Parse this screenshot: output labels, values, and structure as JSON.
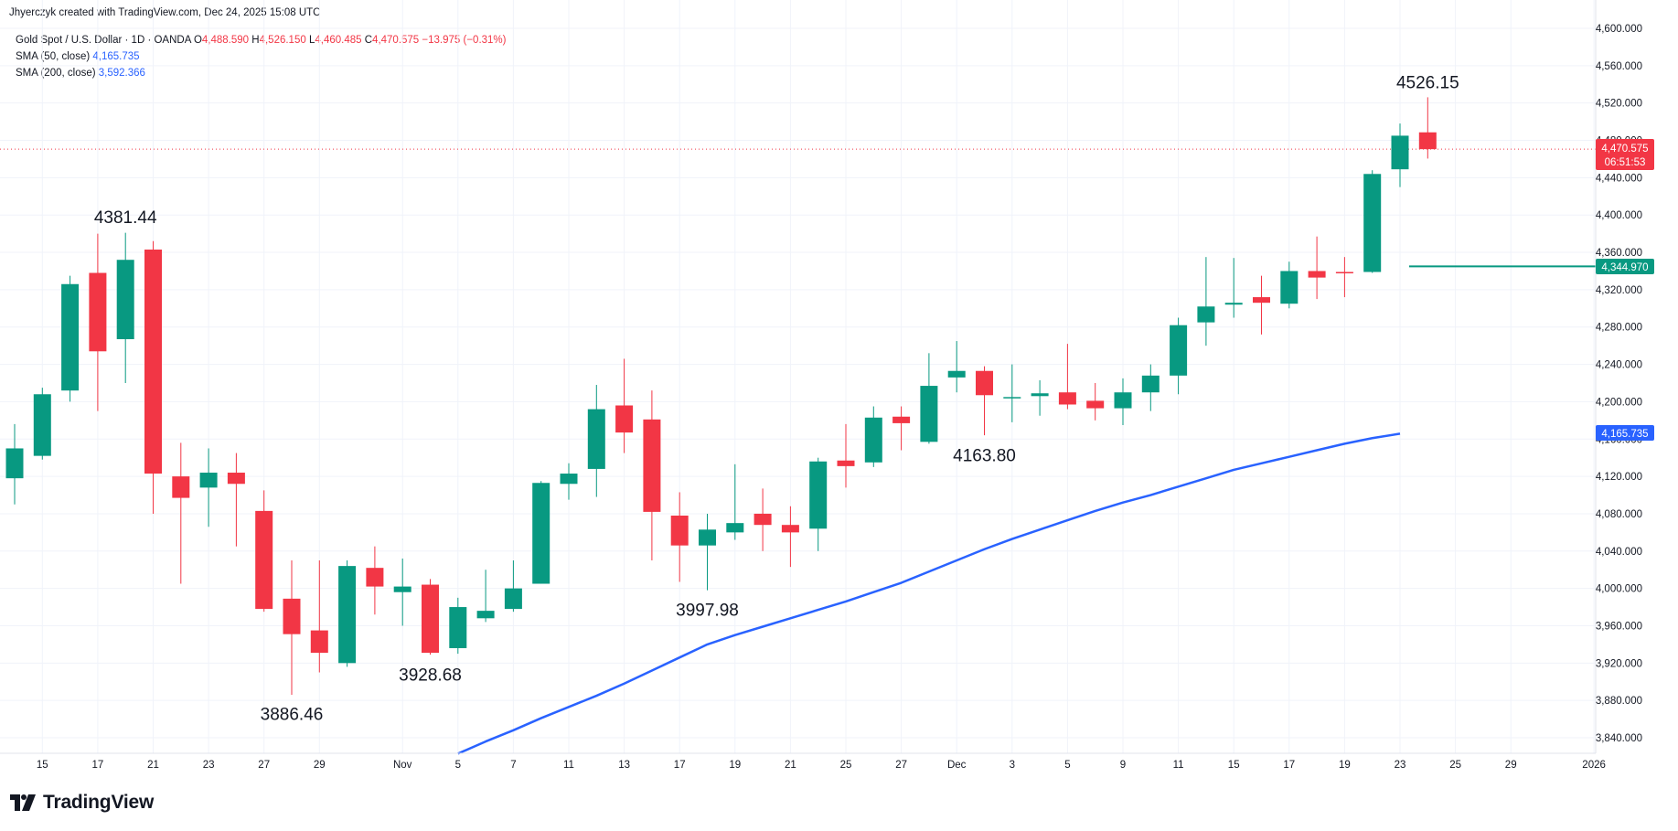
{
  "header": {
    "attribution": "Jhyerczyk created with TradingView.com, Dec 24, 2025 15:08 UTC"
  },
  "legend": {
    "symbol": "Gold Spot / U.S. Dollar · 1D · OANDA",
    "o_label": "O",
    "o_value": "4,488.590",
    "h_label": "H",
    "h_value": "4,526.150",
    "l_label": "L",
    "l_value": "4,460.485",
    "c_label": "C",
    "c_value": "4,470.575",
    "change": "−13.975 (−0.31%)",
    "sma50_label": "SMA (50, close)",
    "sma50_value": "4,165.735",
    "sma200_label": "SMA (200, close)",
    "sma200_value": "3,592.366"
  },
  "price_tags": {
    "last_price": "4,470.575",
    "countdown": "06:51:53",
    "hline_value": "4,344.970",
    "sma50_value": "4,165.735"
  },
  "brand": {
    "name": "TradingView"
  },
  "colors": {
    "up": "#089981",
    "down": "#f23645",
    "sma50": "#2962ff",
    "hline": "#089981",
    "grid": "#f0f3fa",
    "axis_text": "#131722"
  },
  "chart_data": {
    "type": "candlestick",
    "title": "Gold Spot / U.S. Dollar · 1D · OANDA",
    "ylim": [
      3820,
      4610
    ],
    "y_ticks": [
      3840,
      3880,
      3920,
      3960,
      4000,
      4040,
      4080,
      4120,
      4160,
      4200,
      4240,
      4280,
      4320,
      4360,
      4400,
      4440,
      4480,
      4520,
      4560,
      4600
    ],
    "y_tick_labels": [
      "3,840.000",
      "3,880.000",
      "3,920.000",
      "3,960.000",
      "4,000.000",
      "4,040.000",
      "4,080.000",
      "4,120.000",
      "4,160.000",
      "4,200.000",
      "4,240.000",
      "4,280.000",
      "4,320.000",
      "4,360.000",
      "4,400.000",
      "4,440.000",
      "4,480.000",
      "4,520.000",
      "4,560.000",
      "4,600.000"
    ],
    "x_tick_labels": [
      "15",
      "17",
      "21",
      "23",
      "27",
      "29",
      "Nov",
      "5",
      "7",
      "11",
      "13",
      "17",
      "19",
      "21",
      "25",
      "27",
      "Dec",
      "3",
      "5",
      "9",
      "11",
      "15",
      "17",
      "19",
      "23",
      "25",
      "29",
      "2026"
    ],
    "x_tick_slots": [
      1,
      3,
      5,
      7,
      9,
      11,
      14,
      16,
      18,
      20,
      22,
      24,
      26,
      28,
      30,
      32,
      34,
      36,
      38,
      40,
      42,
      44,
      46,
      48,
      50,
      52,
      54,
      57
    ],
    "candles": [
      {
        "o": 4118,
        "h": 4176,
        "l": 4090,
        "c": 4150
      },
      {
        "o": 4142,
        "h": 4215,
        "l": 4138,
        "c": 4208
      },
      {
        "o": 4212,
        "h": 4335,
        "l": 4200,
        "c": 4326
      },
      {
        "o": 4338,
        "h": 4380,
        "l": 4190,
        "c": 4254
      },
      {
        "o": 4267,
        "h": 4381,
        "l": 4220,
        "c": 4352
      },
      {
        "o": 4363,
        "h": 4372,
        "l": 4080,
        "c": 4123
      },
      {
        "o": 4120,
        "h": 4156,
        "l": 4005,
        "c": 4097
      },
      {
        "o": 4108,
        "h": 4150,
        "l": 4066,
        "c": 4124
      },
      {
        "o": 4124,
        "h": 4145,
        "l": 4045,
        "c": 4112
      },
      {
        "o": 4083,
        "h": 4105,
        "l": 3975,
        "c": 3978
      },
      {
        "o": 3989,
        "h": 4030,
        "l": 3886,
        "c": 3951
      },
      {
        "o": 3955,
        "h": 4030,
        "l": 3910,
        "c": 3931
      },
      {
        "o": 3920,
        "h": 4030,
        "l": 3916,
        "c": 4024
      },
      {
        "o": 4022,
        "h": 4045,
        "l": 3972,
        "c": 4002
      },
      {
        "o": 3996,
        "h": 4032,
        "l": 3960,
        "c": 4002
      },
      {
        "o": 4004,
        "h": 4010,
        "l": 3929,
        "c": 3931
      },
      {
        "o": 3936,
        "h": 3990,
        "l": 3930,
        "c": 3980
      },
      {
        "o": 3968,
        "h": 4020,
        "l": 3964,
        "c": 3976
      },
      {
        "o": 3978,
        "h": 4030,
        "l": 3975,
        "c": 4000
      },
      {
        "o": 4005,
        "h": 4115,
        "l": 4005,
        "c": 4113
      },
      {
        "o": 4112,
        "h": 4134,
        "l": 4095,
        "c": 4123
      },
      {
        "o": 4128,
        "h": 4218,
        "l": 4098,
        "c": 4192
      },
      {
        "o": 4196,
        "h": 4246,
        "l": 4145,
        "c": 4167
      },
      {
        "o": 4181,
        "h": 4212,
        "l": 4030,
        "c": 4082
      },
      {
        "o": 4078,
        "h": 4103,
        "l": 4007,
        "c": 4046
      },
      {
        "o": 4046,
        "h": 4080,
        "l": 3998,
        "c": 4063
      },
      {
        "o": 4060,
        "h": 4133,
        "l": 4052,
        "c": 4070
      },
      {
        "o": 4080,
        "h": 4107,
        "l": 4040,
        "c": 4068
      },
      {
        "o": 4068,
        "h": 4088,
        "l": 4023,
        "c": 4060
      },
      {
        "o": 4064,
        "h": 4140,
        "l": 4040,
        "c": 4136
      },
      {
        "o": 4137,
        "h": 4176,
        "l": 4108,
        "c": 4131
      },
      {
        "o": 4135,
        "h": 4195,
        "l": 4130,
        "c": 4183
      },
      {
        "o": 4184,
        "h": 4195,
        "l": 4148,
        "c": 4177
      },
      {
        "o": 4157,
        "h": 4252,
        "l": 4155,
        "c": 4217
      },
      {
        "o": 4226,
        "h": 4265,
        "l": 4210,
        "c": 4233
      },
      {
        "o": 4233,
        "h": 4238,
        "l": 4164,
        "c": 4207
      },
      {
        "o": 4204,
        "h": 4240,
        "l": 4178,
        "c": 4205
      },
      {
        "o": 4206,
        "h": 4223,
        "l": 4185,
        "c": 4209
      },
      {
        "o": 4210,
        "h": 4262,
        "l": 4192,
        "c": 4197
      },
      {
        "o": 4201,
        "h": 4220,
        "l": 4180,
        "c": 4193
      },
      {
        "o": 4193,
        "h": 4225,
        "l": 4175,
        "c": 4210
      },
      {
        "o": 4210,
        "h": 4240,
        "l": 4190,
        "c": 4228
      },
      {
        "o": 4228,
        "h": 4290,
        "l": 4208,
        "c": 4282
      },
      {
        "o": 4285,
        "h": 4355,
        "l": 4260,
        "c": 4302
      },
      {
        "o": 4304,
        "h": 4354,
        "l": 4290,
        "c": 4306
      },
      {
        "o": 4312,
        "h": 4335,
        "l": 4272,
        "c": 4306
      },
      {
        "o": 4305,
        "h": 4350,
        "l": 4300,
        "c": 4340
      },
      {
        "o": 4340,
        "h": 4377,
        "l": 4310,
        "c": 4333
      },
      {
        "o": 4339,
        "h": 4355,
        "l": 4312,
        "c": 4338
      },
      {
        "o": 4339,
        "h": 4448,
        "l": 4338,
        "c": 4444
      },
      {
        "o": 4449,
        "h": 4498,
        "l": 4430,
        "c": 4485
      },
      {
        "o": 4488.59,
        "h": 4526.15,
        "l": 4460.485,
        "c": 4470.575
      }
    ],
    "series": [
      {
        "name": "SMA (50, close)",
        "values": [
          null,
          null,
          null,
          null,
          null,
          null,
          null,
          null,
          null,
          null,
          null,
          null,
          null,
          3823,
          3836,
          3848,
          3861,
          3873,
          3885,
          3898,
          3912,
          3926,
          3940,
          3950,
          3959,
          3968,
          3977,
          3986,
          3996,
          4006,
          4018,
          4030,
          4042,
          4053,
          4063,
          4073,
          4083,
          4092,
          4100,
          4109,
          4118,
          4127,
          4134,
          4141,
          4148,
          4155,
          4161,
          4165.735
        ]
      }
    ],
    "series_start_slot": 3,
    "horizontal_line": {
      "value": 4344.97,
      "from_slot": 50
    },
    "last_price": 4470.575,
    "annotations": [
      {
        "text": "4381.44",
        "slot": 4,
        "price": 4381.44,
        "pos": "above"
      },
      {
        "text": "3886.46",
        "slot": 10,
        "price": 3886.46,
        "pos": "below"
      },
      {
        "text": "3928.68",
        "slot": 15,
        "price": 3928.68,
        "pos": "below"
      },
      {
        "text": "3997.98",
        "slot": 25,
        "price": 3997.98,
        "pos": "below"
      },
      {
        "text": "4163.80",
        "slot": 35,
        "price": 4163.8,
        "pos": "below"
      },
      {
        "text": "4526.15",
        "slot": 51,
        "price": 4526.15,
        "pos": "above"
      }
    ],
    "grid": true
  }
}
